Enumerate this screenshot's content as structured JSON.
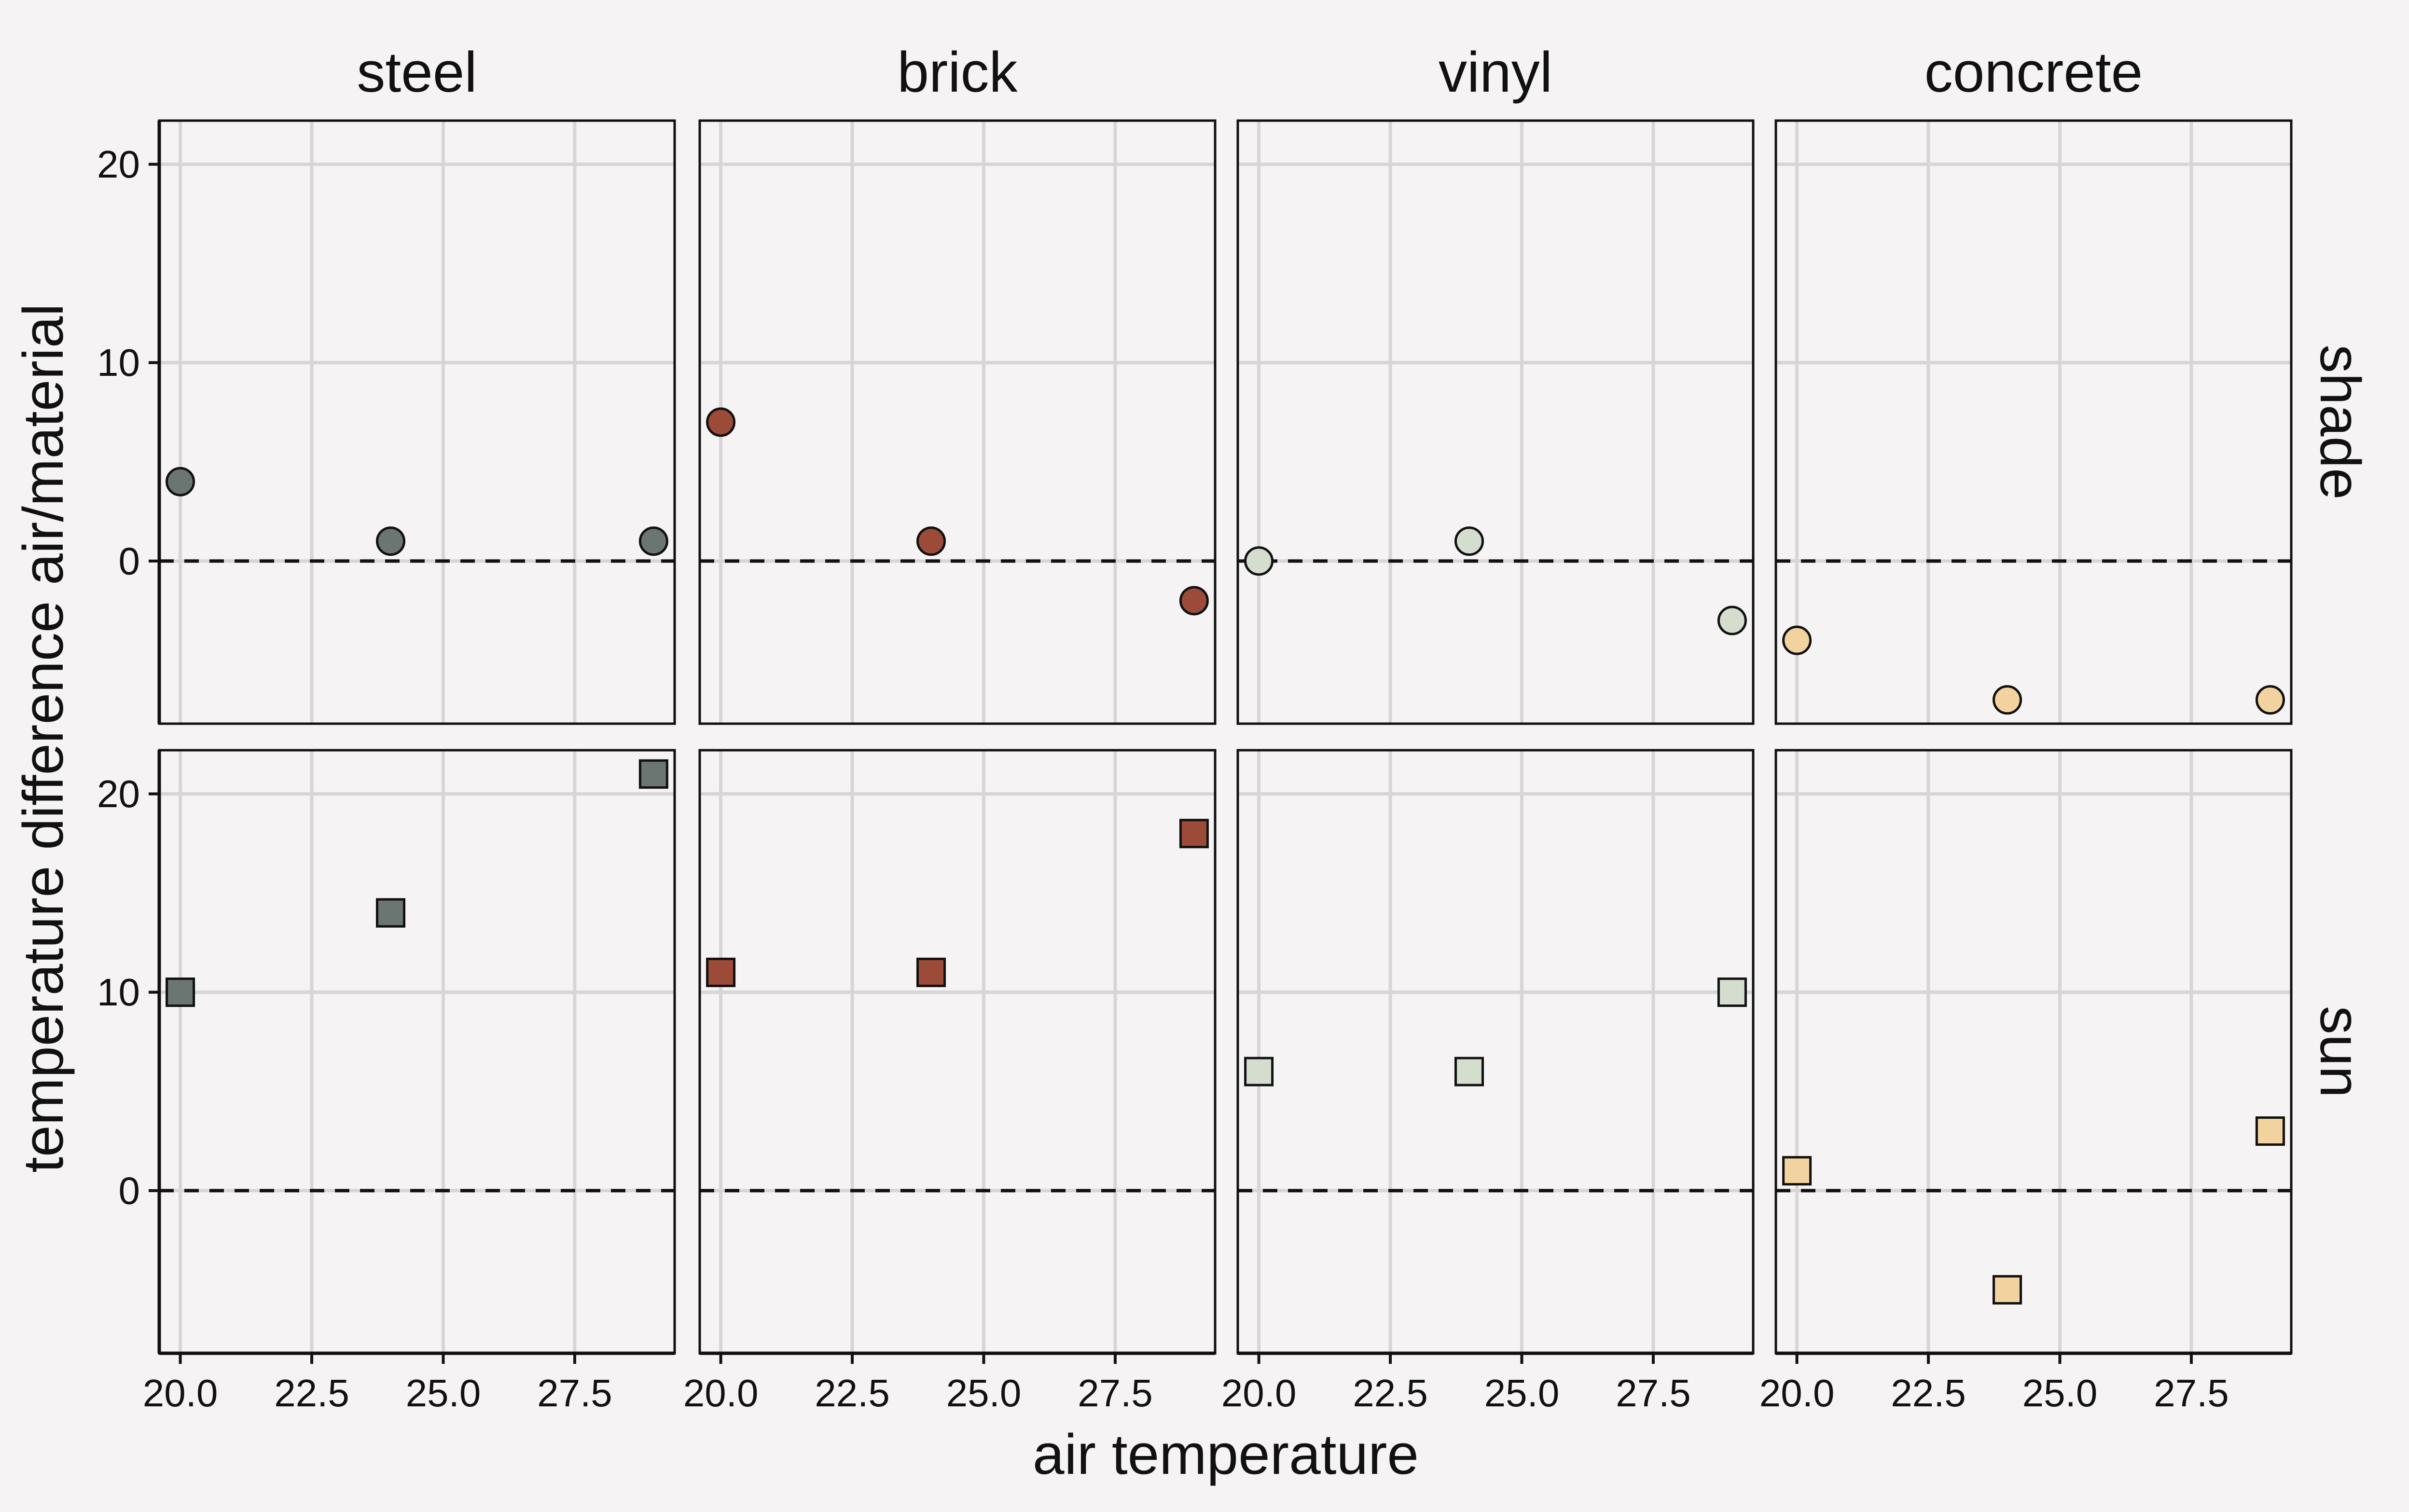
{
  "chart_data": {
    "type": "scatter",
    "xlabel": "air temperature",
    "ylabel": "temperature difference air/material",
    "xlim": [
      19.6,
      29.4
    ],
    "ylim": [
      -8.2,
      22.2
    ],
    "xticks": [
      "20.0",
      "22.5",
      "25.0",
      "27.5"
    ],
    "yticks": [
      "0",
      "10",
      "20"
    ],
    "grid": true,
    "reference_line": {
      "y": 0,
      "style": "dashed"
    },
    "columns": [
      "steel",
      "brick",
      "vinyl",
      "concrete"
    ],
    "rows": [
      "shade",
      "sun"
    ],
    "colors": {
      "steel": "#6b7673",
      "brick": "#9c4b39",
      "vinyl": "#d5ddcf",
      "concrete": "#f2d3a0"
    },
    "marker_by_row": {
      "shade": "circle",
      "sun": "square"
    },
    "x": [
      20,
      24,
      29
    ],
    "panels": [
      {
        "column": "steel",
        "row": "shade",
        "y": [
          4,
          1,
          1
        ]
      },
      {
        "column": "brick",
        "row": "shade",
        "y": [
          7,
          1,
          -2
        ]
      },
      {
        "column": "vinyl",
        "row": "shade",
        "y": [
          0,
          1,
          -3
        ]
      },
      {
        "column": "concrete",
        "row": "shade",
        "y": [
          -4,
          -7,
          -7
        ]
      },
      {
        "column": "steel",
        "row": "sun",
        "y": [
          10,
          14,
          21
        ]
      },
      {
        "column": "brick",
        "row": "sun",
        "y": [
          11,
          11,
          18
        ]
      },
      {
        "column": "vinyl",
        "row": "sun",
        "y": [
          6,
          6,
          10
        ]
      },
      {
        "column": "concrete",
        "row": "sun",
        "y": [
          1,
          -5,
          3
        ]
      }
    ]
  }
}
